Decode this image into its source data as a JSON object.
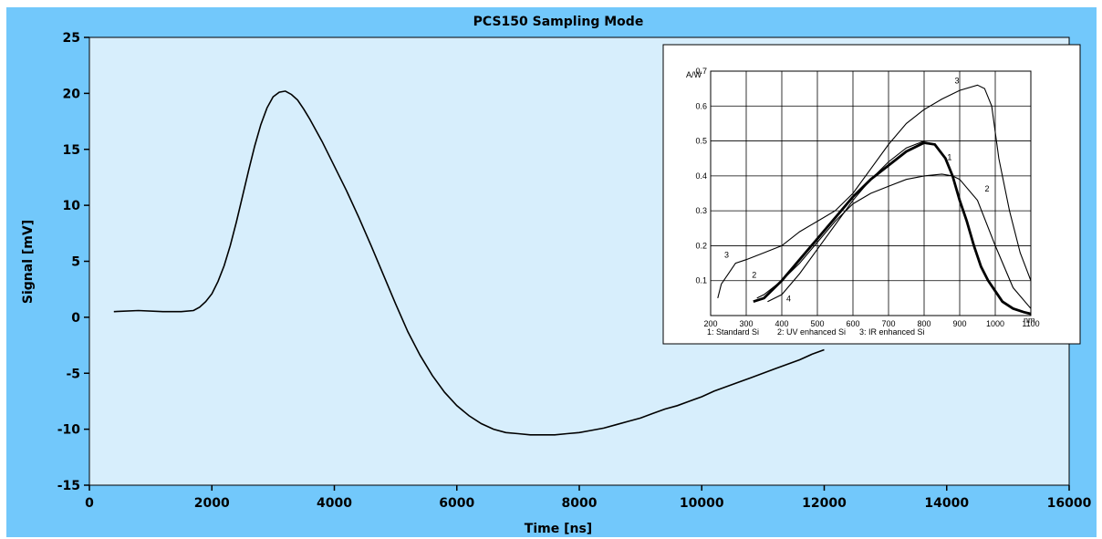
{
  "chart_data": [
    {
      "type": "line",
      "title": "PCS150   Sampling Mode",
      "xlabel": "Time [ns]",
      "ylabel": "Signal [mV]",
      "xlim": [
        0,
        16000
      ],
      "ylim": [
        -15,
        25
      ],
      "xticks": [
        0,
        2000,
        4000,
        6000,
        8000,
        10000,
        12000,
        14000,
        16000
      ],
      "yticks": [
        -15,
        -10,
        -5,
        0,
        5,
        10,
        15,
        20,
        25
      ],
      "grid": false,
      "series": [
        {
          "color": "#000000",
          "x": [
            400,
            800,
            1200,
            1500,
            1700,
            1800,
            1900,
            2000,
            2100,
            2200,
            2300,
            2400,
            2500,
            2600,
            2700,
            2800,
            2900,
            3000,
            3100,
            3200,
            3300,
            3400,
            3500,
            3600,
            3800,
            4000,
            4200,
            4400,
            4600,
            4800,
            5000,
            5200,
            5400,
            5600,
            5800,
            6000,
            6200,
            6400,
            6600,
            6800,
            7000,
            7200,
            7400,
            7600,
            7800,
            8000,
            8200,
            8400,
            8600,
            8800,
            9000,
            9200,
            9400,
            9600,
            9800,
            10000,
            10200,
            10400,
            10600,
            10800,
            11000,
            11200,
            11400,
            11600,
            11800,
            12000
          ],
          "y": [
            0.5,
            0.6,
            0.5,
            0.5,
            0.6,
            0.9,
            1.4,
            2.1,
            3.2,
            4.6,
            6.4,
            8.5,
            10.8,
            13.1,
            15.3,
            17.2,
            18.7,
            19.7,
            20.1,
            20.2,
            19.9,
            19.4,
            18.6,
            17.7,
            15.7,
            13.5,
            11.3,
            8.9,
            6.4,
            3.8,
            1.2,
            -1.3,
            -3.4,
            -5.2,
            -6.7,
            -7.9,
            -8.8,
            -9.5,
            -10.0,
            -10.3,
            -10.4,
            -10.5,
            -10.5,
            -10.5,
            -10.4,
            -10.3,
            -10.1,
            -9.9,
            -9.6,
            -9.3,
            -9.0,
            -8.6,
            -8.2,
            -7.9,
            -7.5,
            -7.1,
            -6.6,
            -6.2,
            -5.8,
            -5.4,
            -5.0,
            -4.6,
            -4.2,
            -3.8,
            -3.3,
            -2.9
          ]
        }
      ]
    },
    {
      "type": "line",
      "ylabel": "A/W",
      "xlabel": "nm",
      "xlim": [
        200,
        1100
      ],
      "ylim": [
        0,
        0.7
      ],
      "xticks": [
        200,
        300,
        400,
        500,
        600,
        700,
        800,
        900,
        1000,
        1100
      ],
      "yticks": [
        0.1,
        0.2,
        0.3,
        0.4,
        0.5,
        0.6,
        0.7
      ],
      "grid": true,
      "legend_text": [
        "1: Standard Si",
        "2: UV enhanced Si",
        "3: IR enhanced Si"
      ],
      "series": [
        {
          "name": "1",
          "label": "1",
          "color": "#000000",
          "x": [
            320,
            350,
            400,
            450,
            500,
            550,
            600,
            650,
            700,
            750,
            800,
            830,
            860,
            880,
            900,
            920,
            940,
            960,
            980,
            1000,
            1020,
            1050,
            1080,
            1100
          ],
          "y": [
            0.04,
            0.05,
            0.1,
            0.16,
            0.22,
            0.28,
            0.34,
            0.39,
            0.43,
            0.47,
            0.495,
            0.49,
            0.45,
            0.4,
            0.33,
            0.27,
            0.2,
            0.14,
            0.1,
            0.07,
            0.04,
            0.02,
            0.01,
            0.005
          ]
        },
        {
          "name": "2",
          "label": "2",
          "color": "#000000",
          "x": [
            330,
            350,
            400,
            450,
            500,
            550,
            600,
            650,
            700,
            750,
            800,
            850,
            880,
            900,
            950,
            1000,
            1050,
            1100
          ],
          "y": [
            0.05,
            0.06,
            0.1,
            0.15,
            0.21,
            0.27,
            0.32,
            0.35,
            0.37,
            0.39,
            0.4,
            0.405,
            0.4,
            0.39,
            0.33,
            0.2,
            0.08,
            0.02
          ]
        },
        {
          "name": "3",
          "label": "3",
          "color": "#000000",
          "x": [
            220,
            230,
            250,
            270,
            300,
            350,
            400,
            450,
            500,
            550,
            600,
            650,
            700,
            750,
            800,
            850,
            900,
            950,
            970,
            990,
            1010,
            1040,
            1070,
            1100
          ],
          "y": [
            0.05,
            0.09,
            0.12,
            0.15,
            0.16,
            0.18,
            0.2,
            0.24,
            0.27,
            0.3,
            0.35,
            0.42,
            0.49,
            0.55,
            0.59,
            0.62,
            0.645,
            0.66,
            0.65,
            0.6,
            0.45,
            0.3,
            0.18,
            0.1
          ]
        },
        {
          "name": "4",
          "label": "4",
          "color": "#000000",
          "x": [
            360,
            400,
            450,
            500,
            550,
            600,
            650,
            700,
            750,
            800
          ],
          "y": [
            0.04,
            0.06,
            0.12,
            0.19,
            0.26,
            0.33,
            0.39,
            0.44,
            0.48,
            0.5
          ]
        }
      ]
    }
  ]
}
